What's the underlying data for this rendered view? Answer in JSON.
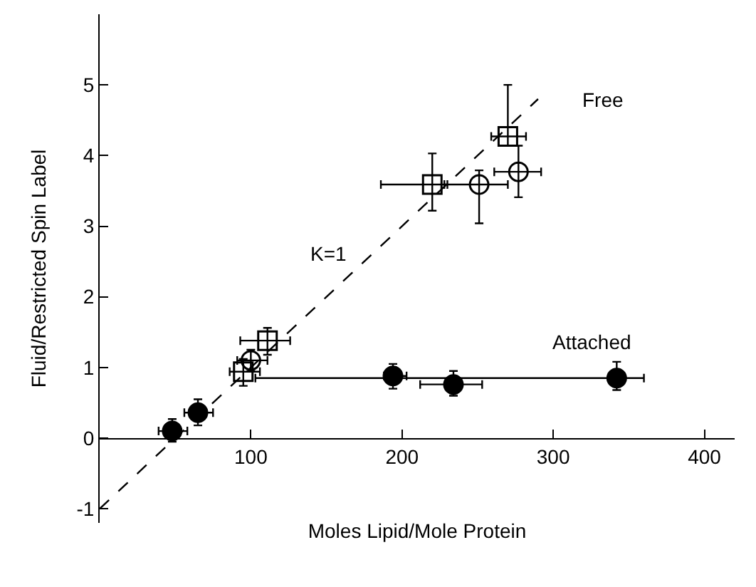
{
  "chart_data": {
    "type": "scatter",
    "xlabel": "Moles Lipid/Mole Protein",
    "ylabel": "Fluid/Restricted Spin Label",
    "xlim": [
      0,
      420
    ],
    "ylim": [
      -1.2,
      6.0
    ],
    "xticks": [
      {
        "value": 100,
        "label": "100"
      },
      {
        "value": 200,
        "label": "200"
      },
      {
        "value": 300,
        "label": "300"
      },
      {
        "value": 400,
        "label": "400"
      }
    ],
    "yticks": [
      -1,
      0,
      1,
      2,
      3,
      4,
      5
    ],
    "grid": false,
    "series": [
      {
        "type": "line",
        "color": "#000000",
        "line_style": "dashed",
        "marker": "none",
        "x": [
          0,
          290
        ],
        "values": [
          -1,
          4.8
        ]
      },
      {
        "color": "#000000",
        "marker": "circle",
        "x": [
          48,
          65,
          194,
          234,
          342
        ],
        "values": [
          0.1,
          0.36,
          0.88,
          0.76,
          0.85
        ],
        "errors": [
          [
            -0.05,
            0.27
          ],
          [
            0.18,
            0.55
          ],
          [
            0.7,
            1.05
          ],
          [
            0.6,
            0.95
          ],
          [
            0.68,
            1.08
          ]
        ],
        "xerrors": [
          [
            39,
            58
          ],
          [
            56,
            75
          ],
          [
            188,
            203
          ],
          [
            212,
            253
          ],
          [
            103,
            360
          ]
        ]
      },
      {
        "color": "#000000",
        "marker": "square-open",
        "x": [
          95,
          111,
          220,
          270
        ],
        "values": [
          0.94,
          1.38,
          3.59,
          4.27
        ],
        "errors": [
          [
            0.74,
            1.12
          ],
          [
            1.18,
            1.56
          ],
          [
            3.22,
            4.03
          ],
          [
            4.14,
            5.0
          ]
        ],
        "xerrors": [
          [
            86,
            106
          ],
          [
            93,
            126
          ],
          [
            186,
            230
          ],
          [
            259,
            282
          ]
        ]
      },
      {
        "color": "#000000",
        "marker": "circle-open",
        "x": [
          100,
          251,
          277
        ],
        "values": [
          1.1,
          3.59,
          3.77
        ],
        "errors": [
          [
            0.95,
            1.25
          ],
          [
            3.04,
            3.79
          ],
          [
            3.41,
            4.14
          ]
        ],
        "xerrors": [
          [
            91,
            111
          ],
          [
            228,
            270
          ],
          [
            261,
            292
          ]
        ]
      }
    ],
    "annotations": [
      "Free",
      "Attached",
      "K=1"
    ]
  }
}
